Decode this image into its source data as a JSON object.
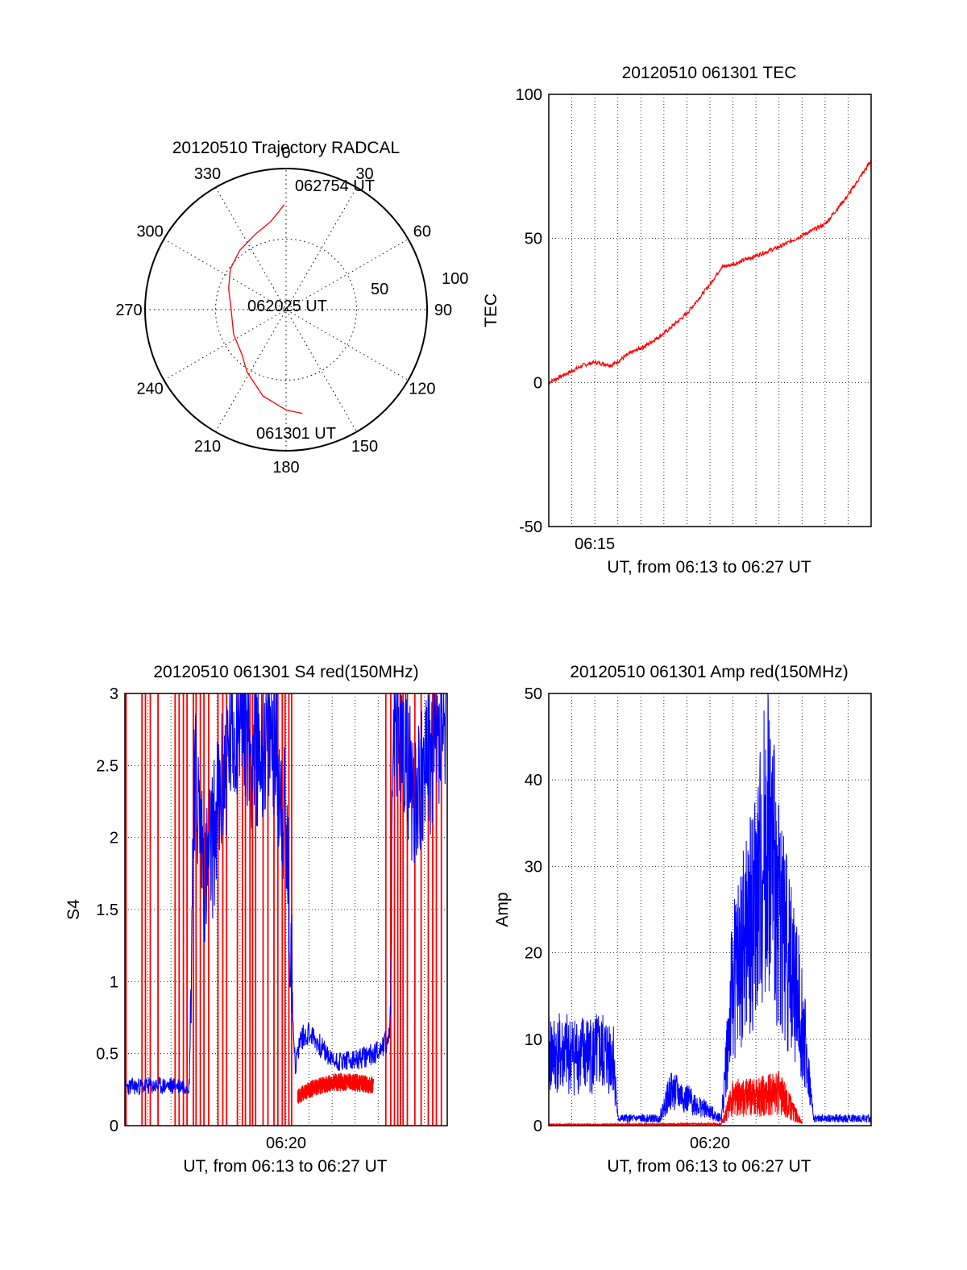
{
  "chart_data": [
    {
      "type": "polar-trajectory",
      "title": "20120510 Trajectory RADCAL",
      "azimuth_labels": [
        "0",
        "30",
        "60",
        "90",
        "120",
        "150",
        "180",
        "210",
        "240",
        "270",
        "300",
        "330"
      ],
      "radius_labels": [
        "50",
        "100"
      ],
      "rlim": [
        0,
        100
      ],
      "grid": true,
      "annotations": [
        "062754 UT",
        "062025 UT",
        "061301 UT"
      ],
      "trajectory": {
        "color": "#ff0000",
        "points_az_el": [
          [
            171,
            23
          ],
          [
            180,
            26
          ],
          [
            195,
            33
          ],
          [
            212,
            43
          ],
          [
            225,
            50
          ],
          [
            245,
            53
          ],
          [
            270,
            55
          ],
          [
            290,
            51
          ],
          [
            306,
            46
          ],
          [
            322,
            42
          ],
          [
            338,
            38
          ],
          [
            350,
            33
          ],
          [
            356,
            27
          ],
          [
            359,
            23
          ]
        ]
      }
    },
    {
      "type": "line",
      "title": "20120510 061301 TEC",
      "xlabel": "UT, from 06:13 to 06:27 UT",
      "ylabel": "TEC",
      "xlim": [
        "06:13",
        "06:27"
      ],
      "ylim": [
        -50,
        100
      ],
      "yticks": [
        "-50",
        "0",
        "50",
        "100"
      ],
      "xticks": [
        "06:15"
      ],
      "grid": true,
      "series": [
        {
          "color": "#ff0000",
          "x": [
            "06:13:00",
            "06:13:45",
            "06:14:30",
            "06:15:00",
            "06:15:45",
            "06:16:30",
            "06:17:15",
            "06:18:00",
            "06:19:00",
            "06:20:00",
            "06:20:30",
            "06:21:00",
            "06:22:00",
            "06:23:00",
            "06:24:00",
            "06:25:00",
            "06:25:30",
            "06:26:00",
            "06:27:00"
          ],
          "y": [
            0,
            3,
            6,
            7,
            6,
            10,
            13,
            17,
            24,
            34,
            40,
            41,
            44,
            47,
            51,
            55,
            60,
            65,
            77
          ]
        }
      ]
    },
    {
      "type": "line",
      "title": "20120510 061301 S4 red(150MHz)",
      "xlabel": "UT, from 06:13 to 06:27 UT",
      "ylabel": "S4",
      "xlim": [
        "06:13",
        "06:27"
      ],
      "ylim": [
        0,
        3
      ],
      "yticks": [
        "0",
        "0.5",
        "1",
        "1.5",
        "2",
        "2.5",
        "3"
      ],
      "xticks": [
        "06:20"
      ],
      "grid": true,
      "series": [
        {
          "color": "#0000ff",
          "x_minutes_after_0613": [
            0.0,
            2.8,
            3.0,
            3.5,
            4.5,
            5.0,
            4.9,
            5.0,
            5.5,
            6.5,
            7.0,
            7.4,
            7.6,
            8.0,
            9.0,
            10.0,
            10.8,
            11.5,
            11.7,
            12.5,
            14.0
          ],
          "values": [
            0.27,
            0.28,
            2.5,
            1.7,
            2.6,
            2.9,
            0.42,
            3.0,
            2.6,
            2.7,
            2.0,
            0.4,
            0.6,
            0.65,
            0.45,
            0.45,
            0.5,
            0.6,
            2.9,
            2.3,
            2.8
          ]
        },
        {
          "color": "#ff0000",
          "x_minutes_after_0613": [
            7.5,
            8.0,
            9.0,
            10.0,
            10.8
          ],
          "values": [
            0.2,
            0.25,
            0.3,
            0.3,
            0.28
          ]
        }
      ]
    },
    {
      "type": "line",
      "title": "20120510 061301 Amp red(150MHz)",
      "xlabel": "UT, from 06:13 to 06:27 UT",
      "ylabel": "Amp",
      "xlim": [
        "06:13",
        "06:27"
      ],
      "ylim": [
        0,
        50
      ],
      "yticks": [
        "0",
        "10",
        "20",
        "30",
        "40",
        "50"
      ],
      "xticks": [
        "06:20"
      ],
      "grid": true,
      "series": [
        {
          "color": "#0000ff",
          "x_minutes_after_0613": [
            0.0,
            2.8,
            3.0,
            4.8,
            5.3,
            7.5,
            8.0,
            9.0,
            9.5,
            10.0,
            11.0,
            11.5,
            14.0
          ],
          "values": [
            10,
            10,
            1,
            1,
            5,
            1,
            20,
            30,
            41,
            30,
            15,
            1,
            1
          ]
        },
        {
          "color": "#ff0000",
          "x_minutes_after_0613": [
            0.0,
            2.8,
            7.5,
            8.0,
            9.0,
            10.0,
            11.0
          ],
          "values": [
            0.2,
            0.2,
            0.3,
            5,
            5,
            6,
            0.5
          ]
        }
      ]
    }
  ]
}
